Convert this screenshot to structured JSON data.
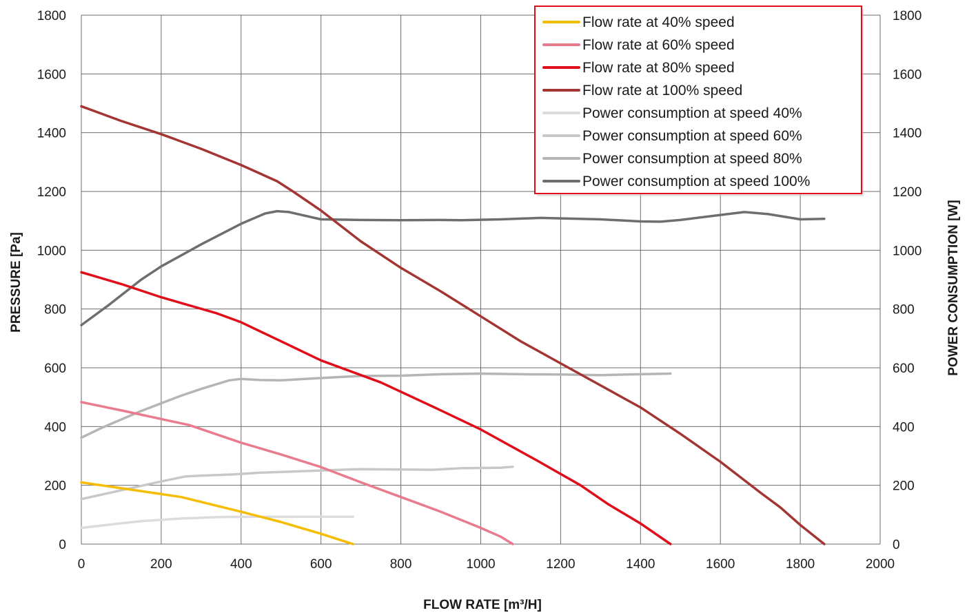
{
  "chart_data": {
    "type": "line",
    "xlabel": "FLOW RATE [m³/H]",
    "ylabel": "PRESSURE [Pa]",
    "y2label": "POWER CONSUMPTION [W]",
    "xlim": [
      0,
      2000
    ],
    "ylim": [
      0,
      1800
    ],
    "y2lim": [
      0,
      1800
    ],
    "x_ticks": [
      "0",
      "200",
      "400",
      "600",
      "800",
      "1000",
      "1200",
      "1400",
      "1600",
      "1800",
      "2000"
    ],
    "y_ticks": [
      "0",
      "200",
      "400",
      "600",
      "800",
      "1000",
      "1200",
      "1400",
      "1600",
      "1800"
    ],
    "y2_ticks": [
      "0",
      "200",
      "400",
      "600",
      "800",
      "1000",
      "1200",
      "1400",
      "1600",
      "1800"
    ],
    "grid": true,
    "legend_position": "top-right",
    "series": [
      {
        "name": "Flow rate at 40% speed",
        "color": "#f5bd00",
        "axis": "left",
        "x": [
          0,
          100,
          250,
          400,
          500,
          600,
          680
        ],
        "y": [
          210,
          190,
          160,
          110,
          75,
          35,
          0
        ]
      },
      {
        "name": "Flow rate at 60% speed",
        "color": "#e87c8e",
        "axis": "left",
        "x": [
          0,
          100,
          270,
          400,
          500,
          600,
          700,
          800,
          900,
          1000,
          1050,
          1080
        ],
        "y": [
          483,
          455,
          405,
          345,
          305,
          262,
          210,
          160,
          110,
          55,
          25,
          0
        ]
      },
      {
        "name": "Flow rate at 80% speed",
        "color": "#e00e1a",
        "axis": "left",
        "x": [
          0,
          100,
          200,
          340,
          400,
          500,
          600,
          750,
          900,
          1000,
          1140,
          1250,
          1320,
          1400,
          1475
        ],
        "y": [
          925,
          885,
          840,
          785,
          755,
          690,
          625,
          550,
          455,
          390,
          285,
          200,
          135,
          70,
          0
        ]
      },
      {
        "name": "Flow rate at 100% speed",
        "color": "#a33633",
        "axis": "left",
        "x": [
          0,
          100,
          200,
          300,
          400,
          490,
          530,
          600,
          700,
          800,
          900,
          1000,
          1100,
          1200,
          1300,
          1400,
          1450,
          1500,
          1600,
          1700,
          1750,
          1800,
          1860
        ],
        "y": [
          1490,
          1440,
          1395,
          1345,
          1290,
          1235,
          1200,
          1135,
          1030,
          940,
          860,
          775,
          690,
          615,
          540,
          465,
          420,
          375,
          280,
          175,
          125,
          65,
          0
        ]
      },
      {
        "name": "Power consumption at speed 40%",
        "color": "#dcdcdc",
        "axis": "right",
        "x": [
          0,
          50,
          150,
          250,
          350,
          450,
          680
        ],
        "y": [
          55,
          63,
          78,
          87,
          92,
          93,
          93
        ]
      },
      {
        "name": "Power consumption at speed 60%",
        "color": "#c8c8c8",
        "axis": "right",
        "x": [
          0,
          100,
          200,
          260,
          300,
          380,
          450,
          550,
          650,
          700,
          880,
          950,
          1050,
          1080
        ],
        "y": [
          153,
          183,
          213,
          230,
          233,
          237,
          243,
          248,
          253,
          255,
          253,
          258,
          260,
          263
        ]
      },
      {
        "name": "Power consumption at speed 80%",
        "color": "#b5b5b5",
        "axis": "right",
        "x": [
          0,
          50,
          150,
          250,
          300,
          370,
          400,
          450,
          500,
          600,
          700,
          800,
          900,
          1000,
          1100,
          1200,
          1300,
          1400,
          1475
        ],
        "y": [
          362,
          395,
          453,
          505,
          528,
          557,
          562,
          558,
          557,
          565,
          572,
          573,
          578,
          580,
          578,
          577,
          575,
          578,
          580
        ]
      },
      {
        "name": "Power consumption at speed 100%",
        "color": "#6e6e6e",
        "axis": "right",
        "x": [
          0,
          70,
          150,
          200,
          300,
          400,
          460,
          490,
          520,
          600,
          700,
          800,
          900,
          950,
          1050,
          1150,
          1300,
          1400,
          1450,
          1500,
          1600,
          1660,
          1720,
          1800,
          1860
        ],
        "y": [
          745,
          815,
          900,
          945,
          1020,
          1090,
          1125,
          1133,
          1130,
          1105,
          1103,
          1102,
          1103,
          1102,
          1105,
          1110,
          1105,
          1098,
          1097,
          1103,
          1120,
          1130,
          1123,
          1105,
          1107
        ]
      }
    ]
  }
}
